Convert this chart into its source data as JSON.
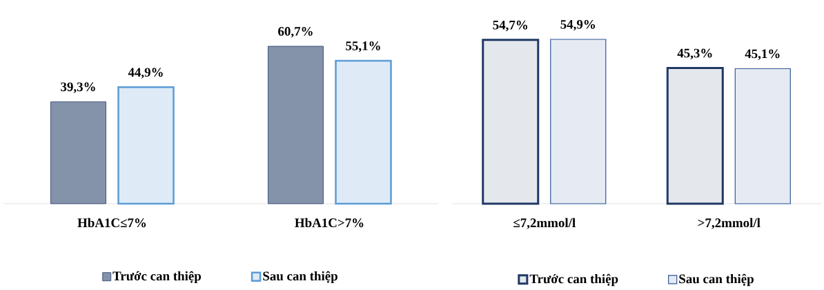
{
  "chart_data": [
    {
      "type": "bar",
      "categories": [
        "HbA1C≤7%",
        "HbA1C>7%"
      ],
      "legend": "bottom",
      "series": [
        {
          "name": "Trước can thiệp",
          "color": "#1f3864",
          "values": [
            39.3,
            60.7
          ],
          "value_labels": [
            "39,3%",
            "60,7%"
          ]
        },
        {
          "name": "Sau can thiệp",
          "color": "#5b9bd5",
          "values": [
            44.9,
            55.1
          ],
          "value_labels": [
            "44,9%",
            "55,1%"
          ]
        }
      ]
    },
    {
      "type": "bar",
      "categories": [
        "≤7,2mmol/l",
        ">7,2mmol/l"
      ],
      "legend": "bottom",
      "series": [
        {
          "name": "Trước can thiệp",
          "color": "#1f3864",
          "values": [
            54.7,
            45.3
          ],
          "value_labels": [
            "54,7%",
            "45,3%"
          ]
        },
        {
          "name": "Sau can thiệp",
          "color": "#2f5597",
          "values": [
            54.9,
            45.1
          ],
          "value_labels": [
            "54,9%",
            "45,1%"
          ]
        }
      ]
    }
  ]
}
